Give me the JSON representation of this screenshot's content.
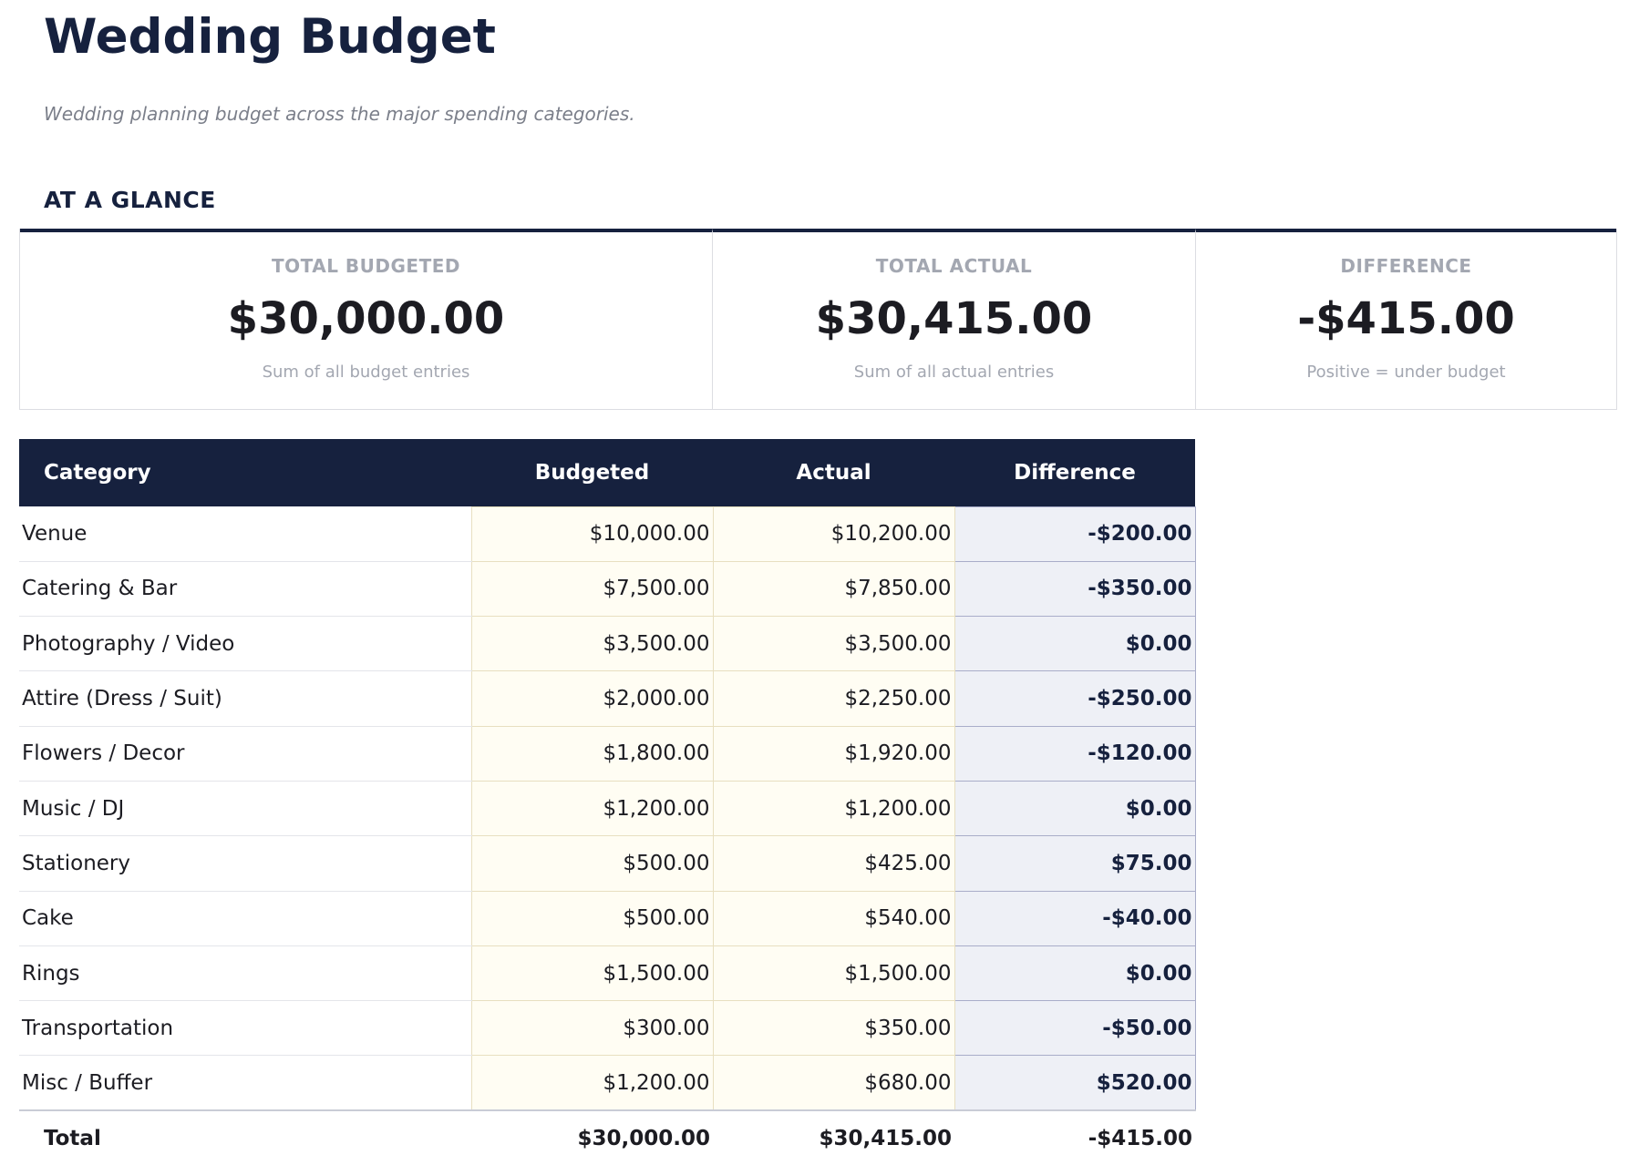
{
  "title": "Wedding Budget",
  "subtitle": "Wedding planning budget across the major spending categories.",
  "section": "AT A GLANCE",
  "cards": [
    {
      "label": "TOTAL BUDGETED",
      "value": "$30,000.00",
      "note": "Sum of all budget entries"
    },
    {
      "label": "TOTAL ACTUAL",
      "value": "$30,415.00",
      "note": "Sum of all actual entries"
    },
    {
      "label": "DIFFERENCE",
      "value": "-$415.00",
      "note": "Positive = under budget"
    }
  ],
  "table": {
    "headers": [
      "Category",
      "Budgeted",
      "Actual",
      "Difference"
    ],
    "rows": [
      [
        "Venue",
        "$10,000.00",
        "$10,200.00",
        "-$200.00"
      ],
      [
        "Catering & Bar",
        "$7,500.00",
        "$7,850.00",
        "-$350.00"
      ],
      [
        "Photography / Video",
        "$3,500.00",
        "$3,500.00",
        "$0.00"
      ],
      [
        "Attire (Dress / Suit)",
        "$2,000.00",
        "$2,250.00",
        "-$250.00"
      ],
      [
        "Flowers / Decor",
        "$1,800.00",
        "$1,920.00",
        "-$120.00"
      ],
      [
        "Music / DJ",
        "$1,200.00",
        "$1,200.00",
        "$0.00"
      ],
      [
        "Stationery",
        "$500.00",
        "$425.00",
        "$75.00"
      ],
      [
        "Cake",
        "$500.00",
        "$540.00",
        "-$40.00"
      ],
      [
        "Rings",
        "$1,500.00",
        "$1,500.00",
        "$0.00"
      ],
      [
        "Transportation",
        "$300.00",
        "$350.00",
        "-$50.00"
      ],
      [
        "Misc / Buffer",
        "$1,200.00",
        "$680.00",
        "$520.00"
      ]
    ],
    "total": [
      "Total",
      "$30,000.00",
      "$30,415.00",
      "-$415.00"
    ]
  },
  "colors": {
    "navy": "#16213e",
    "budget_cell": "#fffdf3",
    "difference_cell": "#eef0f6"
  }
}
